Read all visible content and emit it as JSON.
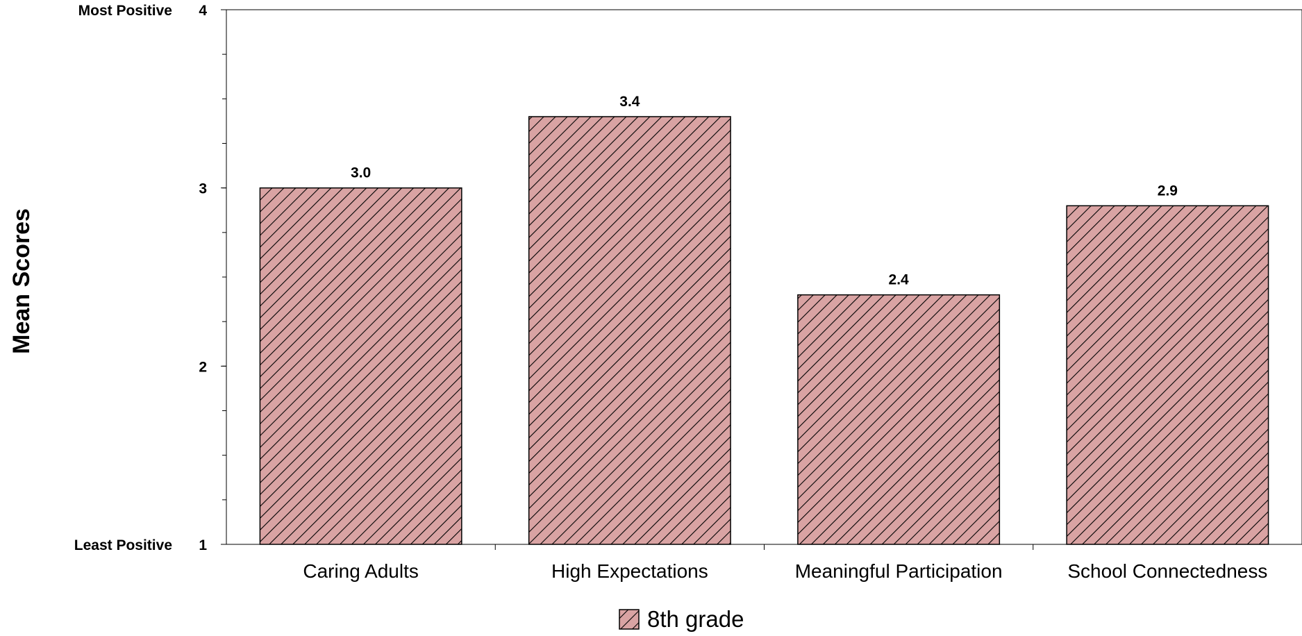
{
  "chart_data": {
    "type": "bar",
    "categories": [
      "Caring Adults",
      "High Expectations",
      "Meaningful Participation",
      "School Connectedness"
    ],
    "series": [
      {
        "name": "8th grade",
        "values": [
          3.0,
          3.4,
          2.4,
          2.9
        ]
      }
    ],
    "data_labels": [
      "3.0",
      "3.4",
      "2.4",
      "2.9"
    ],
    "ylabel": "Mean Scores",
    "ylim": [
      1,
      4
    ],
    "yticks": [
      {
        "value": 4,
        "label": "4",
        "descriptor": "Most Positive"
      },
      {
        "value": 3,
        "label": "3",
        "descriptor": ""
      },
      {
        "value": 2,
        "label": "2",
        "descriptor": ""
      },
      {
        "value": 1,
        "label": "1",
        "descriptor": "Least Positive"
      }
    ],
    "grid": false,
    "legend_position": "bottom-center",
    "bar_fill": "#d9a3a3",
    "hatch_color": "#000000",
    "bar_pattern": "diagonal-hatch"
  }
}
